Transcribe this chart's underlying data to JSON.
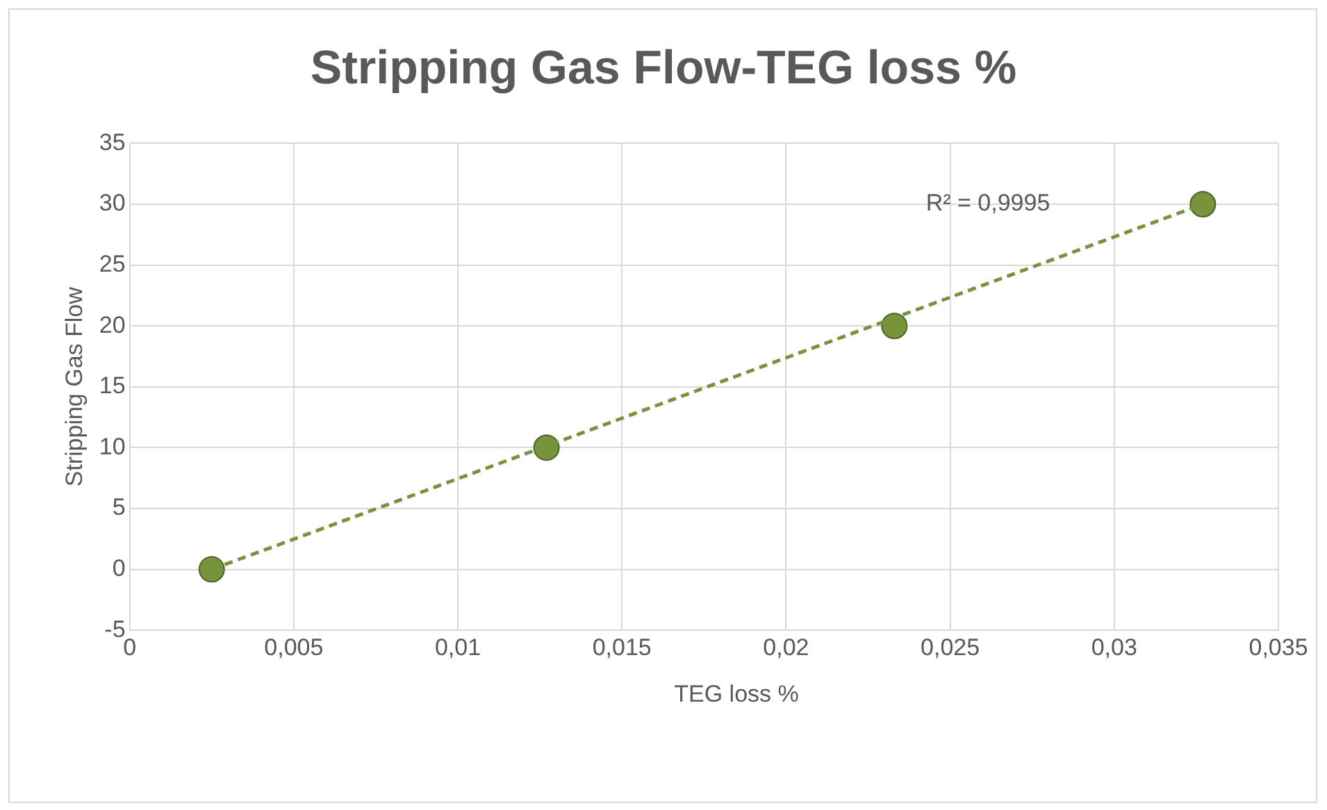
{
  "chart_data": {
    "type": "scatter",
    "title": "Stripping Gas Flow-TEG loss %",
    "xlabel": "TEG loss %",
    "ylabel": "Stripping Gas Flow",
    "series": [
      {
        "type": "scatter",
        "color": "#77933c",
        "marker": "circle",
        "x": [
          0.0025,
          0.0127,
          0.0233,
          0.0327
        ],
        "values": [
          0,
          10,
          20,
          30
        ]
      },
      {
        "type": "line",
        "color": "#77933c",
        "line_style": "dashed",
        "marker": "none",
        "x": [
          0.0025,
          0.0327
        ],
        "values": [
          0,
          30
        ]
      }
    ],
    "xlim": [
      0,
      0.035
    ],
    "xticks": [
      0,
      {
        "value": 0.005,
        "label": "0,005"
      },
      {
        "value": 0.01,
        "label": "0,01"
      },
      {
        "value": 0.015,
        "label": "0,015"
      },
      {
        "value": 0.02,
        "label": "0,02"
      },
      {
        "value": 0.025,
        "label": "0,025"
      },
      {
        "value": 0.03,
        "label": "0,03"
      },
      {
        "value": 0.035,
        "label": "0,035"
      }
    ],
    "ylim": [
      -5,
      35
    ],
    "yticks": [
      -5,
      0,
      5,
      10,
      15,
      20,
      25,
      30,
      35
    ],
    "grid": true,
    "legend": false,
    "annotations": [
      "R² = 0,9995"
    ]
  }
}
